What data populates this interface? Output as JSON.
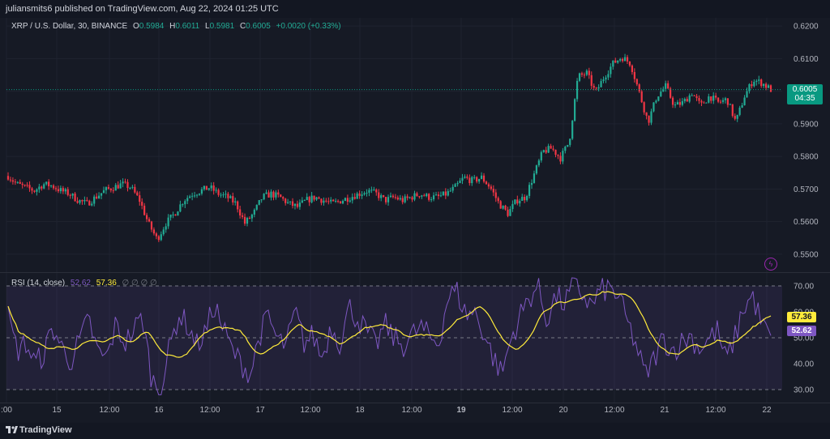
{
  "header": {
    "publish_text": "juliansmits6 published on TradingView.com, Aug 22, 2024 01:25 UTC"
  },
  "legend": {
    "symbol": "XRP / U.S. Dollar, 30, BINANCE",
    "o_label": "O",
    "o_value": "0.5984",
    "h_label": "H",
    "h_value": "0.6011",
    "l_label": "L",
    "l_value": "0.5981",
    "c_label": "C",
    "c_value": "0.6005",
    "change": "+0.0020 (+0.33%)"
  },
  "price_axis": {
    "ticks": [
      "0.6200",
      "0.6100",
      "0.6000",
      "0.5900",
      "0.5800",
      "0.5700",
      "0.5600",
      "0.5500"
    ],
    "current_price": "0.6005",
    "countdown": "04:35"
  },
  "rsi": {
    "label": "RSI (14, close)",
    "value_rsi": "52.62",
    "value_ma": "57.36",
    "options": "∅ ∅ ∅ ∅",
    "ticks": [
      "70.00",
      "60.00",
      "50.00",
      "40.00",
      "30.00"
    ],
    "upper_band": 70,
    "middle_band": 50,
    "lower_band": 30
  },
  "time_axis": {
    "ticks": [
      ":00",
      "15",
      "12:00",
      "16",
      "12:00",
      "17",
      "12:00",
      "18",
      "12:00",
      "19",
      "12:00",
      "20",
      "12:00",
      "21",
      "12:00",
      "22"
    ]
  },
  "colors": {
    "up": "#22ab94",
    "down": "#f23645",
    "rsi_line": "#7e57c2",
    "rsi_ma": "#ffeb3b",
    "background": "#161a25"
  },
  "footer": {
    "brand": "TradingView",
    "logo_icon": "tradingview-logo-icon",
    "alert_icon": "lightning-icon"
  },
  "chart_data": {
    "type": "candlestick",
    "interval": "30",
    "symbol": "XRP / U.S. Dollar",
    "ylim": [
      0.5445,
      0.6225
    ],
    "close_path": [
      0.574,
      0.5715,
      0.5705,
      0.5695,
      0.5715,
      0.571,
      0.5695,
      0.5685,
      0.5665,
      0.5655,
      0.5675,
      0.5695,
      0.5705,
      0.5715,
      0.5705,
      0.5665,
      0.5595,
      0.5545,
      0.5595,
      0.5625,
      0.5665,
      0.5685,
      0.5695,
      0.5705,
      0.5685,
      0.5675,
      0.5655,
      0.5595,
      0.5625,
      0.5675,
      0.5685,
      0.5675,
      0.5655,
      0.5645,
      0.5665,
      0.5675,
      0.5665,
      0.5655,
      0.5665,
      0.5675,
      0.5685,
      0.5695,
      0.5685,
      0.5665,
      0.5675,
      0.5665,
      0.5675,
      0.5685,
      0.5675,
      0.5675,
      0.5685,
      0.5705,
      0.5735,
      0.5725,
      0.5735,
      0.5705,
      0.5655,
      0.5625,
      0.5665,
      0.5675,
      0.5745,
      0.5815,
      0.5825,
      0.5795,
      0.5845,
      0.6045,
      0.6055,
      0.5995,
      0.6045,
      0.6085,
      0.6105,
      0.6085,
      0.5995,
      0.5905,
      0.5985,
      0.6015,
      0.5955,
      0.5965,
      0.5995,
      0.5955,
      0.5985,
      0.5965,
      0.5975,
      0.5905,
      0.5985,
      0.6035,
      0.6025,
      0.6005
    ],
    "rsi_path": [
      58,
      45,
      48,
      40,
      44,
      54,
      46,
      41,
      49,
      57,
      44,
      42,
      55,
      48,
      53,
      58,
      34,
      30,
      46,
      59,
      55,
      47,
      52,
      63,
      53,
      45,
      40,
      36,
      51,
      58,
      49,
      47,
      60,
      48,
      51,
      42,
      55,
      48,
      62,
      57,
      52,
      47,
      55,
      50,
      47,
      51,
      54,
      50,
      48,
      66,
      68,
      59,
      60,
      52,
      43,
      36,
      49,
      58,
      65,
      70,
      57,
      66,
      63,
      70,
      67,
      62,
      68,
      69,
      66,
      56,
      47,
      35,
      42,
      50,
      45,
      48,
      51,
      46,
      49,
      53,
      41,
      50,
      62,
      66,
      55,
      50
    ]
  }
}
